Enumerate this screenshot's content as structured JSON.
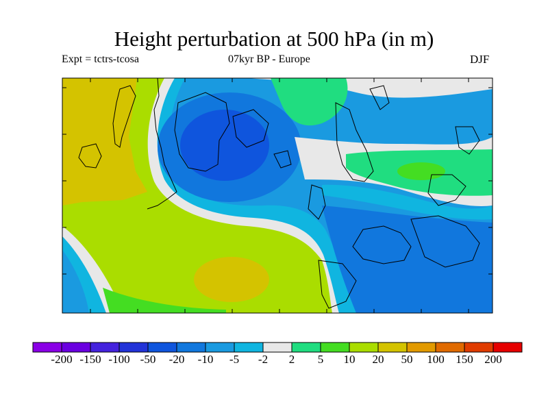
{
  "title": "Height perturbation at 500 hPa (in m)",
  "subtitle_left": "Expt = tctrs-tcosa",
  "subtitle_center": "07kyr BP - Europe",
  "subtitle_right": "DJF",
  "colorbar": {
    "colors": [
      "#8a00e6",
      "#6a00e0",
      "#4422dd",
      "#2233d8",
      "#0f55dd",
      "#1177dd",
      "#1a9ae0",
      "#10b5e0",
      "#e8e8e8",
      "#20dd80",
      "#44dd22",
      "#aadd00",
      "#d4c300",
      "#e29a00",
      "#e06a00",
      "#e03c00",
      "#e60000"
    ],
    "labels": [
      "-200",
      "-150",
      "-100",
      "-50",
      "-20",
      "-10",
      "-5",
      "-2",
      "2",
      "5",
      "10",
      "20",
      "50",
      "100",
      "150",
      "200"
    ]
  }
}
